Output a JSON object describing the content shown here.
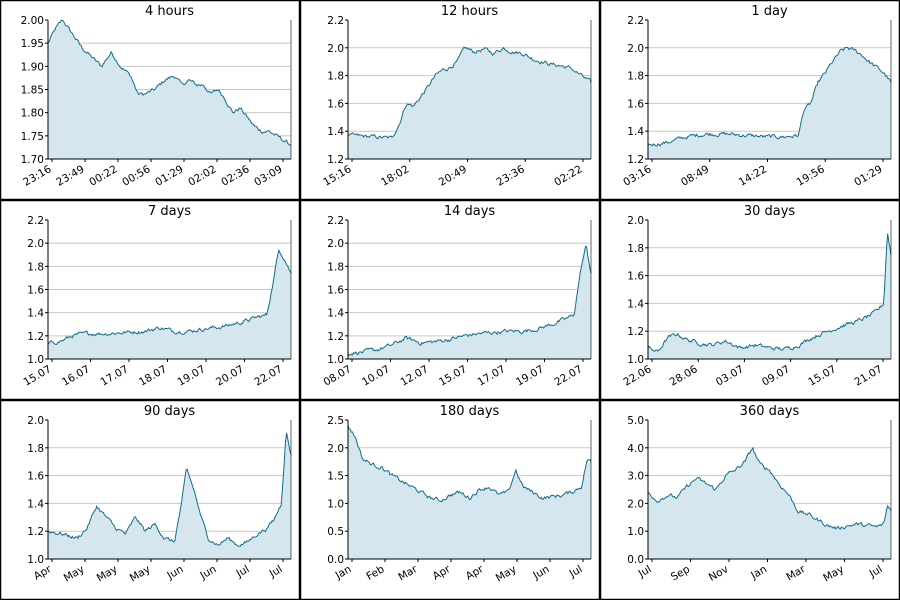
{
  "colors": {
    "line": "#0f6e8a",
    "fill": "#d5e6ee",
    "grid": "#c8c8c8",
    "border": "#000000"
  },
  "chart_data": [
    {
      "type": "area",
      "title": "4 hours",
      "ylim": [
        1.7,
        2.0
      ],
      "yticks": [
        "1.70",
        "1.75",
        "1.80",
        "1.85",
        "1.90",
        "1.95",
        "2.00"
      ],
      "xticks": [
        "23:16",
        "23:49",
        "00:22",
        "00:56",
        "01:29",
        "02:02",
        "02:36",
        "03:09"
      ],
      "keypoints": [
        [
          0,
          1.95
        ],
        [
          0.03,
          1.98
        ],
        [
          0.06,
          2.0
        ],
        [
          0.1,
          1.97
        ],
        [
          0.14,
          1.94
        ],
        [
          0.18,
          1.92
        ],
        [
          0.22,
          1.9
        ],
        [
          0.26,
          1.93
        ],
        [
          0.3,
          1.9
        ],
        [
          0.34,
          1.88
        ],
        [
          0.37,
          1.84
        ],
        [
          0.4,
          1.84
        ],
        [
          0.44,
          1.85
        ],
        [
          0.48,
          1.87
        ],
        [
          0.52,
          1.88
        ],
        [
          0.55,
          1.86
        ],
        [
          0.58,
          1.87
        ],
        [
          0.61,
          1.86
        ],
        [
          0.64,
          1.86
        ],
        [
          0.67,
          1.84
        ],
        [
          0.7,
          1.85
        ],
        [
          0.73,
          1.83
        ],
        [
          0.76,
          1.8
        ],
        [
          0.79,
          1.81
        ],
        [
          0.82,
          1.79
        ],
        [
          0.85,
          1.77
        ],
        [
          0.88,
          1.76
        ],
        [
          0.91,
          1.76
        ],
        [
          0.94,
          1.75
        ],
        [
          0.97,
          1.74
        ],
        [
          1,
          1.73
        ]
      ]
    },
    {
      "type": "area",
      "title": "12 hours",
      "ylim": [
        1.2,
        2.2
      ],
      "yticks": [
        "1.2",
        "1.4",
        "1.6",
        "1.8",
        "2.0",
        "2.2"
      ],
      "xticks": [
        "15:16",
        "18:02",
        "20:49",
        "23:36",
        "02:22"
      ],
      "keypoints": [
        [
          0,
          1.37
        ],
        [
          0.1,
          1.36
        ],
        [
          0.18,
          1.35
        ],
        [
          0.21,
          1.45
        ],
        [
          0.24,
          1.6
        ],
        [
          0.27,
          1.58
        ],
        [
          0.3,
          1.65
        ],
        [
          0.33,
          1.72
        ],
        [
          0.36,
          1.8
        ],
        [
          0.39,
          1.84
        ],
        [
          0.42,
          1.86
        ],
        [
          0.45,
          1.9
        ],
        [
          0.48,
          2.0
        ],
        [
          0.52,
          1.97
        ],
        [
          0.56,
          1.99
        ],
        [
          0.6,
          1.96
        ],
        [
          0.64,
          2.0
        ],
        [
          0.68,
          1.97
        ],
        [
          0.72,
          1.96
        ],
        [
          0.76,
          1.92
        ],
        [
          0.8,
          1.9
        ],
        [
          0.84,
          1.88
        ],
        [
          0.88,
          1.87
        ],
        [
          0.92,
          1.85
        ],
        [
          0.96,
          1.8
        ],
        [
          1,
          1.75
        ]
      ]
    },
    {
      "type": "area",
      "title": "1 day",
      "ylim": [
        1.2,
        2.2
      ],
      "yticks": [
        "1.2",
        "1.4",
        "1.6",
        "1.8",
        "2.0",
        "2.2"
      ],
      "xticks": [
        "03:16",
        "08:49",
        "14:22",
        "19:56",
        "01:29"
      ],
      "keypoints": [
        [
          0,
          1.3
        ],
        [
          0.08,
          1.32
        ],
        [
          0.16,
          1.36
        ],
        [
          0.24,
          1.38
        ],
        [
          0.32,
          1.38
        ],
        [
          0.4,
          1.37
        ],
        [
          0.48,
          1.36
        ],
        [
          0.56,
          1.36
        ],
        [
          0.62,
          1.37
        ],
        [
          0.64,
          1.55
        ],
        [
          0.67,
          1.6
        ],
        [
          0.7,
          1.75
        ],
        [
          0.73,
          1.82
        ],
        [
          0.76,
          1.9
        ],
        [
          0.79,
          1.97
        ],
        [
          0.82,
          2.0
        ],
        [
          0.85,
          1.98
        ],
        [
          0.88,
          1.95
        ],
        [
          0.91,
          1.9
        ],
        [
          0.94,
          1.86
        ],
        [
          0.97,
          1.82
        ],
        [
          1,
          1.75
        ]
      ]
    },
    {
      "type": "area",
      "title": "7 days",
      "ylim": [
        1.0,
        2.2
      ],
      "yticks": [
        "1.0",
        "1.2",
        "1.4",
        "1.6",
        "1.8",
        "2.0",
        "2.2"
      ],
      "xticks": [
        "15.07",
        "16.07",
        "17.07",
        "18.07",
        "19.07",
        "20.07",
        "22.07"
      ],
      "keypoints": [
        [
          0,
          1.13
        ],
        [
          0.06,
          1.16
        ],
        [
          0.1,
          1.2
        ],
        [
          0.16,
          1.22
        ],
        [
          0.24,
          1.22
        ],
        [
          0.32,
          1.23
        ],
        [
          0.4,
          1.24
        ],
        [
          0.46,
          1.27
        ],
        [
          0.52,
          1.24
        ],
        [
          0.58,
          1.24
        ],
        [
          0.64,
          1.26
        ],
        [
          0.72,
          1.28
        ],
        [
          0.8,
          1.32
        ],
        [
          0.86,
          1.36
        ],
        [
          0.9,
          1.38
        ],
        [
          0.93,
          1.7
        ],
        [
          0.95,
          1.95
        ],
        [
          0.97,
          1.88
        ],
        [
          1,
          1.74
        ]
      ]
    },
    {
      "type": "area",
      "title": "14 days",
      "ylim": [
        1.0,
        2.2
      ],
      "yticks": [
        "1.0",
        "1.2",
        "1.4",
        "1.6",
        "1.8",
        "2.0",
        "2.2"
      ],
      "xticks": [
        "08.07",
        "10.07",
        "12.07",
        "15.07",
        "17.07",
        "19.07",
        "22.07"
      ],
      "keypoints": [
        [
          0,
          1.05
        ],
        [
          0.06,
          1.06
        ],
        [
          0.12,
          1.08
        ],
        [
          0.18,
          1.12
        ],
        [
          0.24,
          1.18
        ],
        [
          0.3,
          1.14
        ],
        [
          0.36,
          1.15
        ],
        [
          0.42,
          1.17
        ],
        [
          0.48,
          1.2
        ],
        [
          0.54,
          1.22
        ],
        [
          0.6,
          1.23
        ],
        [
          0.66,
          1.24
        ],
        [
          0.72,
          1.24
        ],
        [
          0.78,
          1.26
        ],
        [
          0.84,
          1.3
        ],
        [
          0.9,
          1.35
        ],
        [
          0.93,
          1.38
        ],
        [
          0.96,
          1.8
        ],
        [
          0.98,
          1.98
        ],
        [
          1,
          1.74
        ]
      ]
    },
    {
      "type": "area",
      "title": "30 days",
      "ylim": [
        1.0,
        2.0
      ],
      "yticks": [
        "1.0",
        "1.2",
        "1.4",
        "1.6",
        "1.8",
        "2.0"
      ],
      "xticks": [
        "22.06",
        "28.06",
        "03.07",
        "09.07",
        "15.07",
        "21.07"
      ],
      "keypoints": [
        [
          0,
          1.08
        ],
        [
          0.04,
          1.05
        ],
        [
          0.08,
          1.15
        ],
        [
          0.12,
          1.18
        ],
        [
          0.16,
          1.14
        ],
        [
          0.2,
          1.12
        ],
        [
          0.26,
          1.1
        ],
        [
          0.32,
          1.13
        ],
        [
          0.38,
          1.08
        ],
        [
          0.44,
          1.1
        ],
        [
          0.5,
          1.08
        ],
        [
          0.56,
          1.07
        ],
        [
          0.62,
          1.1
        ],
        [
          0.68,
          1.16
        ],
        [
          0.74,
          1.2
        ],
        [
          0.8,
          1.24
        ],
        [
          0.86,
          1.27
        ],
        [
          0.9,
          1.3
        ],
        [
          0.94,
          1.34
        ],
        [
          0.97,
          1.4
        ],
        [
          0.985,
          1.92
        ],
        [
          1,
          1.75
        ]
      ]
    },
    {
      "type": "area",
      "title": "90 days",
      "ylim": [
        1.0,
        2.0
      ],
      "yticks": [
        "1.0",
        "1.2",
        "1.4",
        "1.6",
        "1.8",
        "2.0"
      ],
      "xticks": [
        "Apr",
        "May",
        "May",
        "May",
        "Jun",
        "Jun",
        "Jul",
        "Jul"
      ],
      "keypoints": [
        [
          0,
          1.2
        ],
        [
          0.06,
          1.18
        ],
        [
          0.12,
          1.15
        ],
        [
          0.16,
          1.22
        ],
        [
          0.2,
          1.38
        ],
        [
          0.24,
          1.3
        ],
        [
          0.28,
          1.22
        ],
        [
          0.32,
          1.18
        ],
        [
          0.36,
          1.3
        ],
        [
          0.4,
          1.2
        ],
        [
          0.44,
          1.25
        ],
        [
          0.48,
          1.15
        ],
        [
          0.52,
          1.12
        ],
        [
          0.55,
          1.4
        ],
        [
          0.57,
          1.65
        ],
        [
          0.6,
          1.5
        ],
        [
          0.63,
          1.3
        ],
        [
          0.66,
          1.15
        ],
        [
          0.7,
          1.1
        ],
        [
          0.74,
          1.15
        ],
        [
          0.78,
          1.1
        ],
        [
          0.82,
          1.12
        ],
        [
          0.86,
          1.18
        ],
        [
          0.9,
          1.22
        ],
        [
          0.93,
          1.28
        ],
        [
          0.96,
          1.4
        ],
        [
          0.98,
          1.92
        ],
        [
          1,
          1.75
        ]
      ]
    },
    {
      "type": "area",
      "title": "180 days",
      "ylim": [
        0.0,
        2.5
      ],
      "yticks": [
        "0.0",
        "0.5",
        "1.0",
        "1.5",
        "2.0",
        "2.5"
      ],
      "xticks": [
        "Jan",
        "Feb",
        "Mar",
        "Apr",
        "Apr",
        "May",
        "Jun",
        "Jul"
      ],
      "keypoints": [
        [
          0,
          2.4
        ],
        [
          0.03,
          2.2
        ],
        [
          0.06,
          1.8
        ],
        [
          0.1,
          1.7
        ],
        [
          0.14,
          1.65
        ],
        [
          0.18,
          1.5
        ],
        [
          0.22,
          1.4
        ],
        [
          0.26,
          1.3
        ],
        [
          0.3,
          1.2
        ],
        [
          0.34,
          1.1
        ],
        [
          0.38,
          1.05
        ],
        [
          0.42,
          1.15
        ],
        [
          0.46,
          1.2
        ],
        [
          0.5,
          1.1
        ],
        [
          0.54,
          1.25
        ],
        [
          0.58,
          1.3
        ],
        [
          0.62,
          1.15
        ],
        [
          0.66,
          1.2
        ],
        [
          0.69,
          1.6
        ],
        [
          0.72,
          1.3
        ],
        [
          0.76,
          1.2
        ],
        [
          0.8,
          1.1
        ],
        [
          0.84,
          1.12
        ],
        [
          0.88,
          1.15
        ],
        [
          0.92,
          1.2
        ],
        [
          0.96,
          1.3
        ],
        [
          0.985,
          1.8
        ],
        [
          1,
          1.75
        ]
      ]
    },
    {
      "type": "area",
      "title": "360 days",
      "ylim": [
        0.0,
        5.0
      ],
      "yticks": [
        "0.0",
        "1.0",
        "2.0",
        "3.0",
        "4.0",
        "5.0"
      ],
      "xticks": [
        "Jul",
        "Sep",
        "Nov",
        "Jan",
        "Mar",
        "May",
        "Jul"
      ],
      "keypoints": [
        [
          0,
          2.4
        ],
        [
          0.04,
          2.1
        ],
        [
          0.08,
          2.3
        ],
        [
          0.12,
          2.2
        ],
        [
          0.16,
          2.6
        ],
        [
          0.2,
          2.9
        ],
        [
          0.24,
          2.7
        ],
        [
          0.28,
          2.5
        ],
        [
          0.32,
          3.0
        ],
        [
          0.36,
          3.2
        ],
        [
          0.4,
          3.5
        ],
        [
          0.43,
          4.0
        ],
        [
          0.46,
          3.4
        ],
        [
          0.5,
          3.2
        ],
        [
          0.54,
          2.7
        ],
        [
          0.58,
          2.3
        ],
        [
          0.62,
          1.7
        ],
        [
          0.66,
          1.6
        ],
        [
          0.7,
          1.4
        ],
        [
          0.74,
          1.2
        ],
        [
          0.78,
          1.1
        ],
        [
          0.82,
          1.2
        ],
        [
          0.86,
          1.25
        ],
        [
          0.9,
          1.2
        ],
        [
          0.94,
          1.15
        ],
        [
          0.97,
          1.25
        ],
        [
          0.985,
          1.9
        ],
        [
          1,
          1.75
        ]
      ]
    }
  ]
}
